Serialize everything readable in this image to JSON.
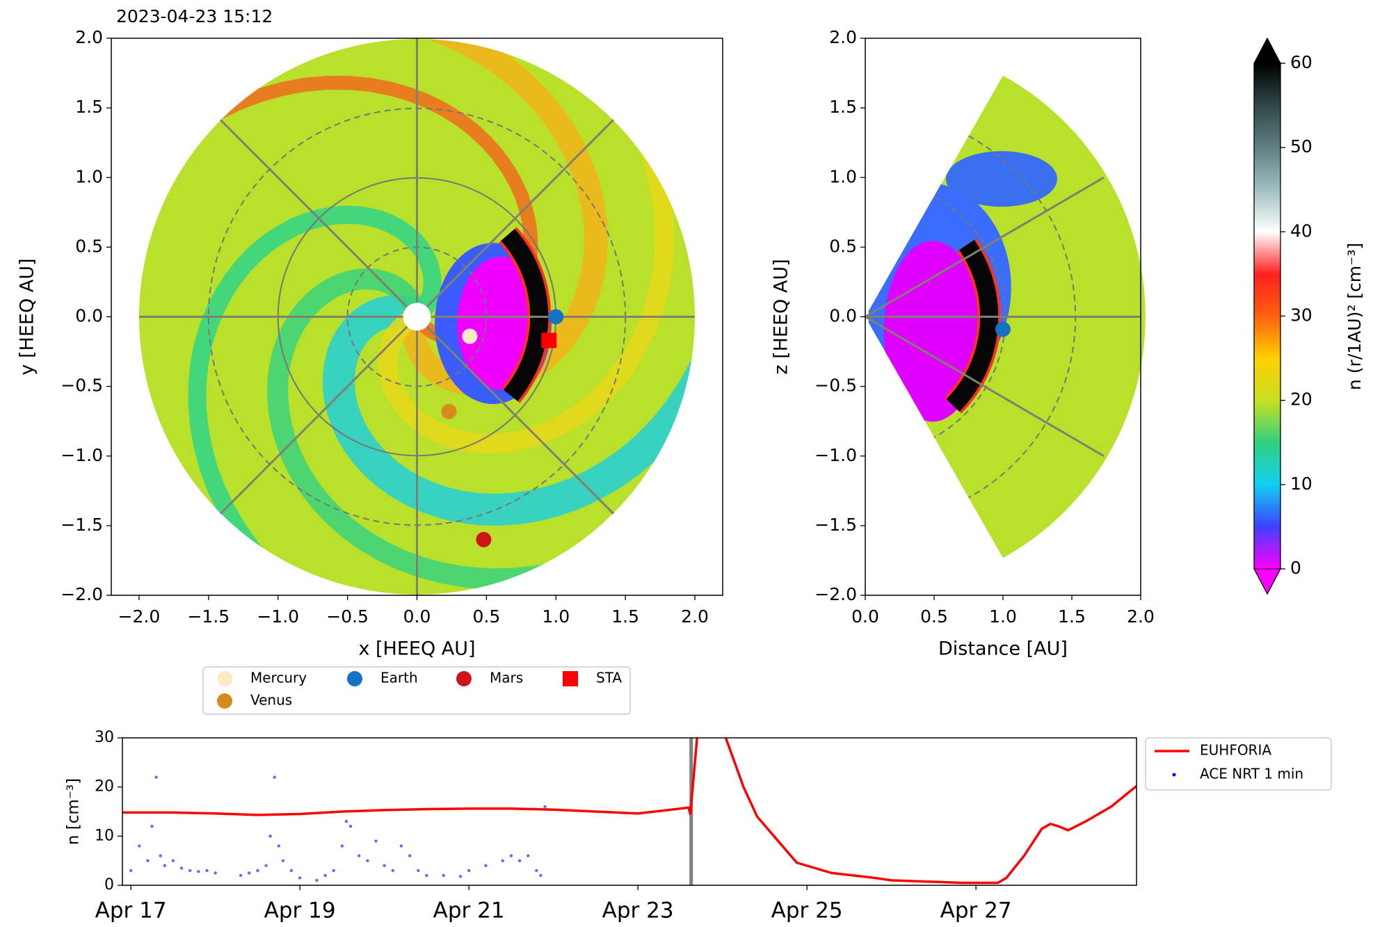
{
  "chart_data": [
    {
      "type": "scatter",
      "title": "2023-04-23 15:12",
      "xlabel": "x [HEEQ AU]",
      "ylabel": "y [HEEQ AU]",
      "xlim": [
        -2.2,
        2.2
      ],
      "ylim": [
        -2,
        2
      ],
      "xticks": [
        {
          "value": -2,
          "label": "−2.0"
        },
        {
          "value": -1.5,
          "label": "−1.5"
        },
        {
          "value": -1,
          "label": "−1.0"
        },
        {
          "value": -0.5,
          "label": "−0.5"
        },
        {
          "value": 0,
          "label": "0.0"
        },
        {
          "value": 0.5,
          "label": "0.5"
        },
        {
          "value": 1,
          "label": "1.0"
        },
        {
          "value": 1.5,
          "label": "1.5"
        },
        {
          "value": 2,
          "label": "2.0"
        }
      ],
      "yticks": [
        {
          "value": -2,
          "label": "−2.0"
        },
        {
          "value": -1.5,
          "label": "−1.5"
        },
        {
          "value": -1,
          "label": "−1.0"
        },
        {
          "value": -0.5,
          "label": "−0.5"
        },
        {
          "value": 0,
          "label": "0.0"
        },
        {
          "value": 0.5,
          "label": "0.5"
        },
        {
          "value": 1,
          "label": "1.0"
        },
        {
          "value": 1.5,
          "label": "1.5"
        },
        {
          "value": 2,
          "label": "2.0"
        }
      ],
      "series": [
        {
          "name": "Mercury",
          "color": "#fcebc2",
          "marker": "circle",
          "x": [
            0.38
          ],
          "values": [
            -0.14
          ]
        },
        {
          "name": "Venus",
          "color": "#d98a1c",
          "marker": "circle",
          "x": [
            0.23
          ],
          "values": [
            -0.68
          ]
        },
        {
          "name": "Earth",
          "color": "#1672c4",
          "marker": "circle",
          "x": [
            1.0
          ],
          "values": [
            0.0
          ]
        },
        {
          "name": "Mars",
          "color": "#d0121b",
          "marker": "circle",
          "x": [
            0.48
          ],
          "values": [
            -1.6
          ]
        },
        {
          "name": "STA",
          "color": "#ff0000",
          "marker": "square",
          "x": [
            0.95
          ],
          "values": [
            -0.17
          ]
        }
      ]
    },
    {
      "type": "scatter",
      "xlabel": "Distance [AU]",
      "ylabel": "z [HEEQ AU]",
      "xlim": [
        0,
        2
      ],
      "ylim": [
        -2,
        2
      ],
      "xticks": [
        {
          "value": 0,
          "label": "0.0"
        },
        {
          "value": 0.5,
          "label": "0.5"
        },
        {
          "value": 1,
          "label": "1.0"
        },
        {
          "value": 1.5,
          "label": "1.5"
        },
        {
          "value": 2,
          "label": "2.0"
        }
      ],
      "yticks": [
        {
          "value": -2,
          "label": "−2.0"
        },
        {
          "value": -1.5,
          "label": "−1.5"
        },
        {
          "value": -1,
          "label": "−1.0"
        },
        {
          "value": -0.5,
          "label": "−0.5"
        },
        {
          "value": 0,
          "label": "0.0"
        },
        {
          "value": 0.5,
          "label": "0.5"
        },
        {
          "value": 1,
          "label": "1.0"
        },
        {
          "value": 1.5,
          "label": "1.5"
        },
        {
          "value": 2,
          "label": "2.0"
        }
      ],
      "series": [
        {
          "color": "#1672c4",
          "marker": "circle",
          "x": [
            1.0
          ],
          "values": [
            -0.09
          ]
        }
      ]
    },
    {
      "type": "colorbar",
      "label": "n (r/1AU)² [cm⁻³]",
      "ylim": [
        0,
        60
      ],
      "yticks": [
        0,
        10,
        20,
        30,
        40,
        50,
        60
      ],
      "colors": [
        "#ff00ff",
        "#4040ff",
        "#10d0f0",
        "#30d080",
        "#c8e020",
        "#ffd000",
        "#ff6010",
        "#ff2020",
        "#ffffff",
        "#a0c0c0",
        "#608080",
        "#304848",
        "#000000"
      ]
    },
    {
      "type": "line",
      "ylabel": "n [cm⁻³]",
      "xlim": [
        16.9,
        28.9
      ],
      "ylim": [
        0,
        30
      ],
      "current_time": 23.63,
      "xticks": [
        {
          "value": 17,
          "label": "Apr 17"
        },
        {
          "value": 19,
          "label": "Apr 19"
        },
        {
          "value": 21,
          "label": "Apr 21"
        },
        {
          "value": 23,
          "label": "Apr 23"
        },
        {
          "value": 25,
          "label": "Apr 25"
        },
        {
          "value": 27,
          "label": "Apr 27"
        }
      ],
      "yticks": [
        0,
        10,
        20,
        30
      ],
      "series": [
        {
          "name": "EUHFORIA",
          "color": "#ff0000",
          "style": "line",
          "x": [
            16.9,
            17.5,
            18.0,
            18.5,
            19.0,
            19.5,
            20.0,
            20.5,
            21.0,
            21.5,
            22.0,
            22.5,
            23.0,
            23.3,
            23.6,
            23.62,
            23.7,
            23.75,
            24.04,
            24.25,
            24.41,
            24.56,
            24.88,
            25.29,
            25.8,
            26.0,
            26.84,
            27.26,
            27.36,
            27.57,
            27.78,
            27.88,
            27.98,
            28.09,
            28.3,
            28.6,
            28.9
          ],
          "values": [
            14.8,
            14.8,
            14.6,
            14.3,
            14.5,
            15.0,
            15.3,
            15.5,
            15.6,
            15.6,
            15.4,
            15.0,
            14.6,
            15.2,
            15.8,
            14.4,
            30,
            null,
            30,
            20,
            14,
            11,
            4.6,
            2.5,
            1.5,
            1.0,
            0.5,
            0.5,
            1.5,
            6,
            11.5,
            12.5,
            12.0,
            11.2,
            13,
            16,
            20.2
          ]
        },
        {
          "name": "ACE NRT 1 min",
          "color": "#0000ff",
          "style": "dots",
          "x": [
            17.0,
            17.1,
            17.2,
            17.25,
            17.3,
            17.35,
            17.4,
            17.5,
            17.6,
            17.7,
            17.8,
            17.9,
            18.0,
            18.3,
            18.4,
            18.5,
            18.6,
            18.65,
            18.7,
            18.75,
            18.8,
            18.9,
            19.0,
            19.2,
            19.3,
            19.4,
            19.5,
            19.55,
            19.6,
            19.7,
            19.8,
            19.9,
            20.0,
            20.1,
            20.2,
            20.3,
            20.4,
            20.5,
            20.7,
            20.9,
            21.0,
            21.2,
            21.4,
            21.5,
            21.6,
            21.7,
            21.8,
            21.85,
            21.9
          ],
          "values": [
            3,
            8,
            5,
            12,
            22,
            6,
            4,
            5,
            3.5,
            3,
            2.8,
            3,
            2.5,
            2,
            2.5,
            3,
            4,
            10,
            22,
            8,
            5,
            3,
            1.5,
            1,
            2,
            3,
            8,
            13,
            12,
            6,
            5,
            9,
            4,
            3,
            8,
            6,
            3,
            2,
            2,
            1.8,
            3,
            4,
            5,
            6,
            5,
            6,
            3,
            2,
            16
          ]
        }
      ]
    }
  ]
}
